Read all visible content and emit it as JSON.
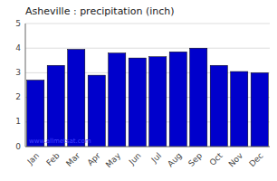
{
  "chart_data": {
    "type": "bar",
    "title": "Asheville : precipitation (inch)",
    "categories": [
      "Jan",
      "Feb",
      "Mar",
      "Apr",
      "May",
      "Jun",
      "Jul",
      "Aug",
      "Sep",
      "Oct",
      "Nov",
      "Dec"
    ],
    "values": [
      2.7,
      3.3,
      3.95,
      2.9,
      3.8,
      3.6,
      3.65,
      3.85,
      4.0,
      3.3,
      3.05,
      3.0
    ],
    "color": "#0000CC",
    "ylim": [
      0,
      5
    ],
    "yticks": [
      0,
      1,
      2,
      3,
      4,
      5
    ],
    "grid": true,
    "annotations": [
      "www.allmetsat.com"
    ]
  }
}
